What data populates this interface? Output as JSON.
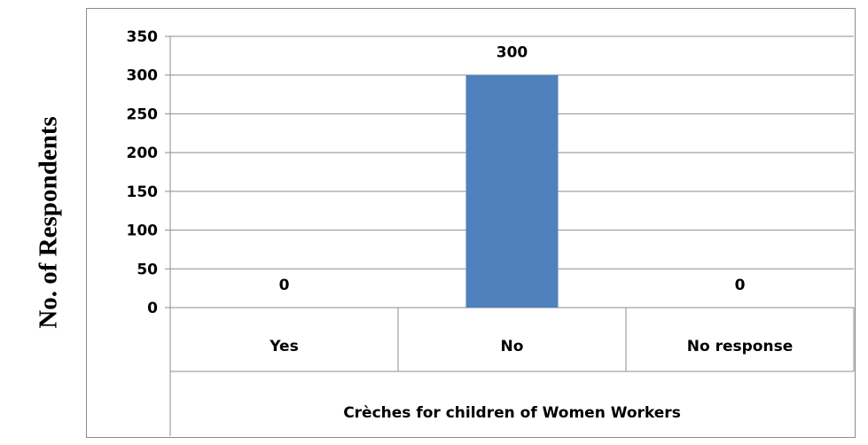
{
  "chart_data": {
    "type": "bar",
    "categories": [
      "Yes",
      "No",
      "No response"
    ],
    "values": [
      0,
      300,
      0
    ],
    "data_labels": [
      "0",
      "300",
      "0"
    ],
    "ylabel": "No. of Respondents",
    "xlabel": "Crèches for  children of Women Workers",
    "ylim": [
      0,
      350
    ],
    "yticks": [
      0,
      50,
      100,
      150,
      200,
      250,
      300,
      350
    ],
    "grid": true,
    "bar_color": "#4f81bd"
  }
}
